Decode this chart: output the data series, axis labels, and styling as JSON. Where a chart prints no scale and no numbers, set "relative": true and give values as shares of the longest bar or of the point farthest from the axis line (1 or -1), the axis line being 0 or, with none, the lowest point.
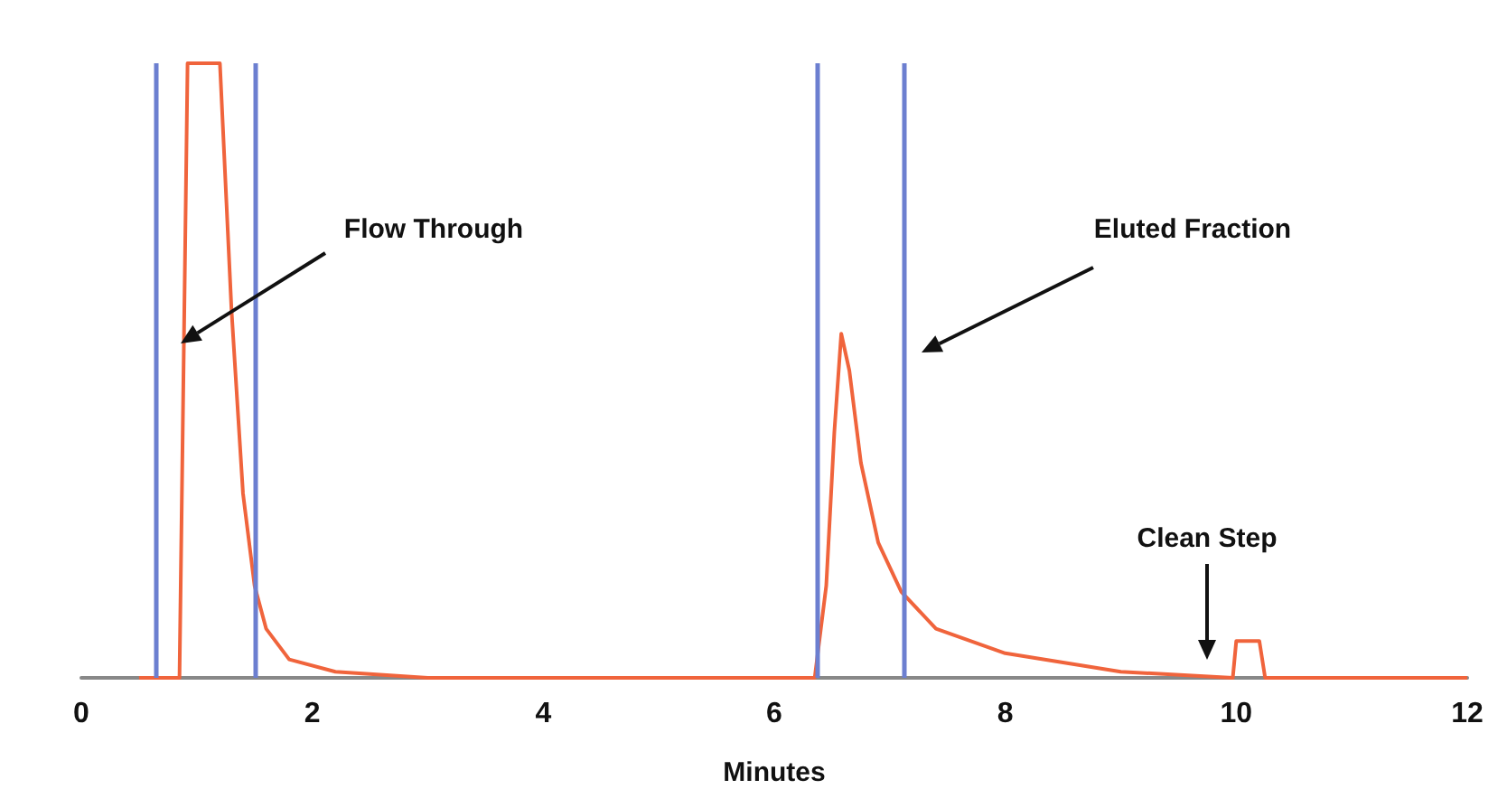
{
  "chart_data": {
    "type": "line",
    "relative": true,
    "xlabel": "Minutes",
    "xlim": [
      0,
      12
    ],
    "xticks": [
      0,
      2,
      4,
      6,
      8,
      10,
      12
    ],
    "grid": false,
    "marker": "none",
    "line_style": "solid",
    "series": [
      {
        "color": "#f0643c",
        "x": [
          0.5,
          0.85,
          0.92,
          1.2,
          1.3,
          1.4,
          1.5,
          1.6,
          1.8,
          2.2,
          3,
          6.35,
          6.45,
          6.52,
          6.58,
          6.65,
          6.75,
          6.9,
          7.1,
          7.4,
          8,
          9,
          9.97,
          10.0,
          10.2,
          10.25,
          12
        ],
        "values": [
          0,
          0,
          1,
          1,
          0.6,
          0.3,
          0.15,
          0.08,
          0.03,
          0.01,
          0,
          0,
          0.15,
          0.4,
          0.56,
          0.5,
          0.35,
          0.22,
          0.14,
          0.08,
          0.04,
          0.01,
          0,
          0.06,
          0.06,
          0,
          0
        ]
      }
    ],
    "ref_lines": [
      {
        "axis": "x",
        "value": 0.64,
        "color": "#6c7fd0"
      },
      {
        "axis": "x",
        "value": 1.51,
        "color": "#6c7fd0"
      },
      {
        "axis": "x",
        "value": 6.37,
        "color": "#6c7fd0"
      },
      {
        "axis": "x",
        "value": 7.13,
        "color": "#6c7fd0"
      }
    ],
    "annotations": [
      "Flow Through",
      "Eluted Fraction",
      "Clean Step"
    ]
  }
}
